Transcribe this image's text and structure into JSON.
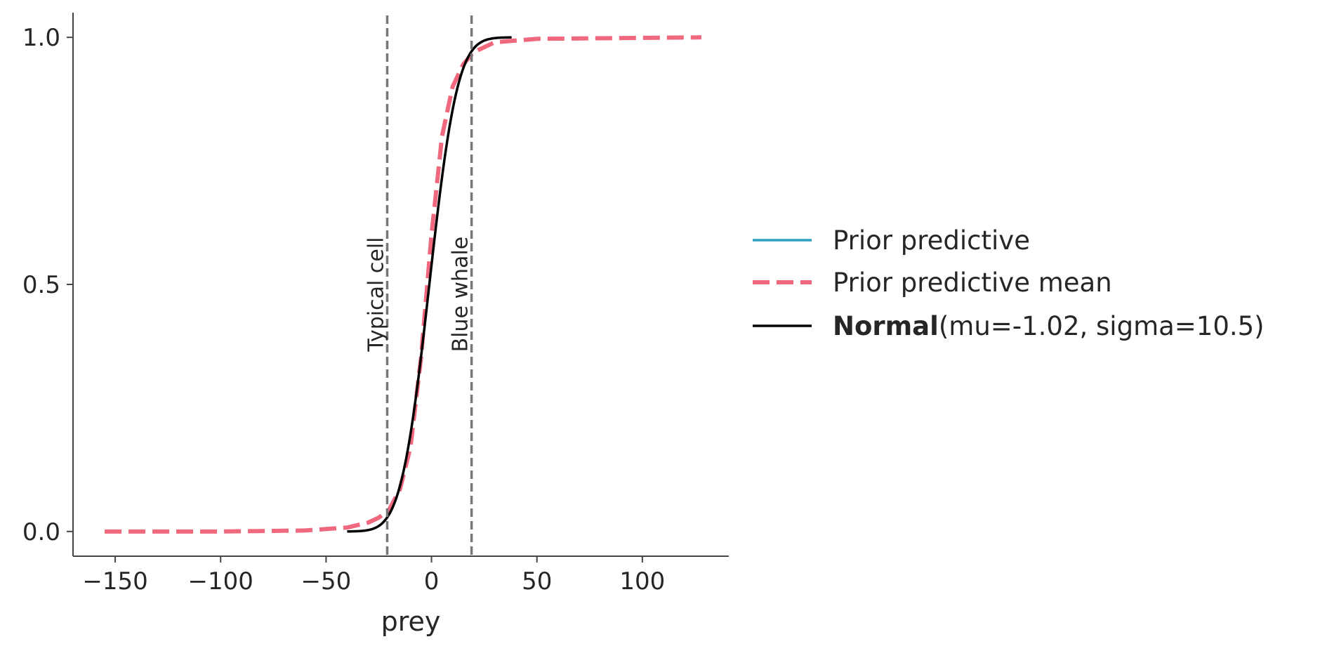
{
  "chart_data": {
    "type": "line",
    "xlabel": "prey",
    "ylabel": "",
    "xlim": [
      -170,
      141
    ],
    "ylim": [
      -0.05,
      1.05
    ],
    "x_ticks": [
      -150,
      -100,
      -50,
      0,
      50,
      100
    ],
    "x_tick_labels": [
      "−150",
      "−100",
      "−50",
      "0",
      "50",
      "100"
    ],
    "y_ticks": [
      0.0,
      0.5,
      1.0
    ],
    "y_tick_labels": [
      "0.0",
      "0.5",
      "1.0"
    ],
    "grid": false,
    "legend_placement": "right, outside",
    "series": [
      {
        "name": "Prior predictive",
        "color": "#2a9fc4",
        "style": "solid",
        "points": []
      },
      {
        "name": "Prior predictive mean",
        "color": "#f0687d",
        "style": "dashed",
        "points": [
          [
            -155,
            0.0
          ],
          [
            -100,
            0.0
          ],
          [
            -60,
            0.002
          ],
          [
            -40,
            0.008
          ],
          [
            -30,
            0.018
          ],
          [
            -25,
            0.028
          ],
          [
            -20,
            0.045
          ],
          [
            -15,
            0.085
          ],
          [
            -10,
            0.17
          ],
          [
            -5,
            0.35
          ],
          [
            0,
            0.6
          ],
          [
            5,
            0.8
          ],
          [
            10,
            0.9
          ],
          [
            15,
            0.945
          ],
          [
            20,
            0.97
          ],
          [
            30,
            0.99
          ],
          [
            50,
            0.997
          ],
          [
            128,
            1.0
          ]
        ]
      },
      {
        "name": "Normal",
        "params": "(mu=-1.02, sigma=10.5)",
        "color": "#000000",
        "style": "solid",
        "distribution": "normal_cdf",
        "mu": -1.02,
        "sigma": 10.5,
        "x_range": [
          -40,
          38
        ]
      }
    ],
    "reference_lines": [
      {
        "x": -21,
        "label": "Typical cell",
        "color": "#777777",
        "style": "dashed"
      },
      {
        "x": 19,
        "label": "Blue whale",
        "color": "#777777",
        "style": "dashed"
      }
    ]
  }
}
